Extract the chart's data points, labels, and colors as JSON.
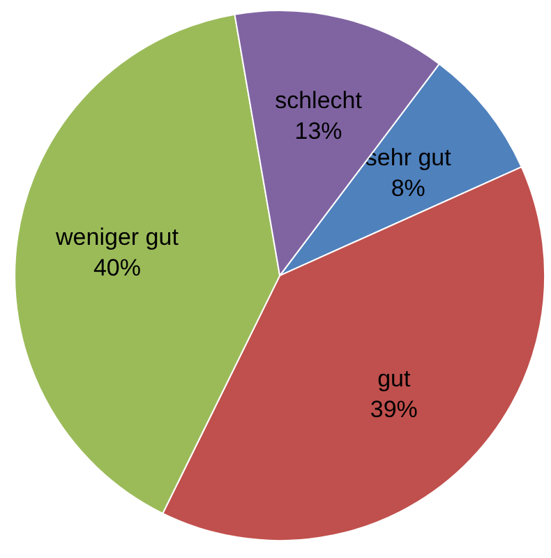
{
  "chart_data": {
    "type": "pie",
    "categories": [
      "sehr gut",
      "gut",
      "weniger gut",
      "schlecht"
    ],
    "values": [
      8,
      39,
      40,
      13
    ],
    "colors": [
      "#4f81bd",
      "#c0504d",
      "#9bbb59",
      "#8064a2"
    ],
    "value_labels": [
      "8%",
      "39%",
      "40%",
      "13%"
    ],
    "legend": false
  }
}
